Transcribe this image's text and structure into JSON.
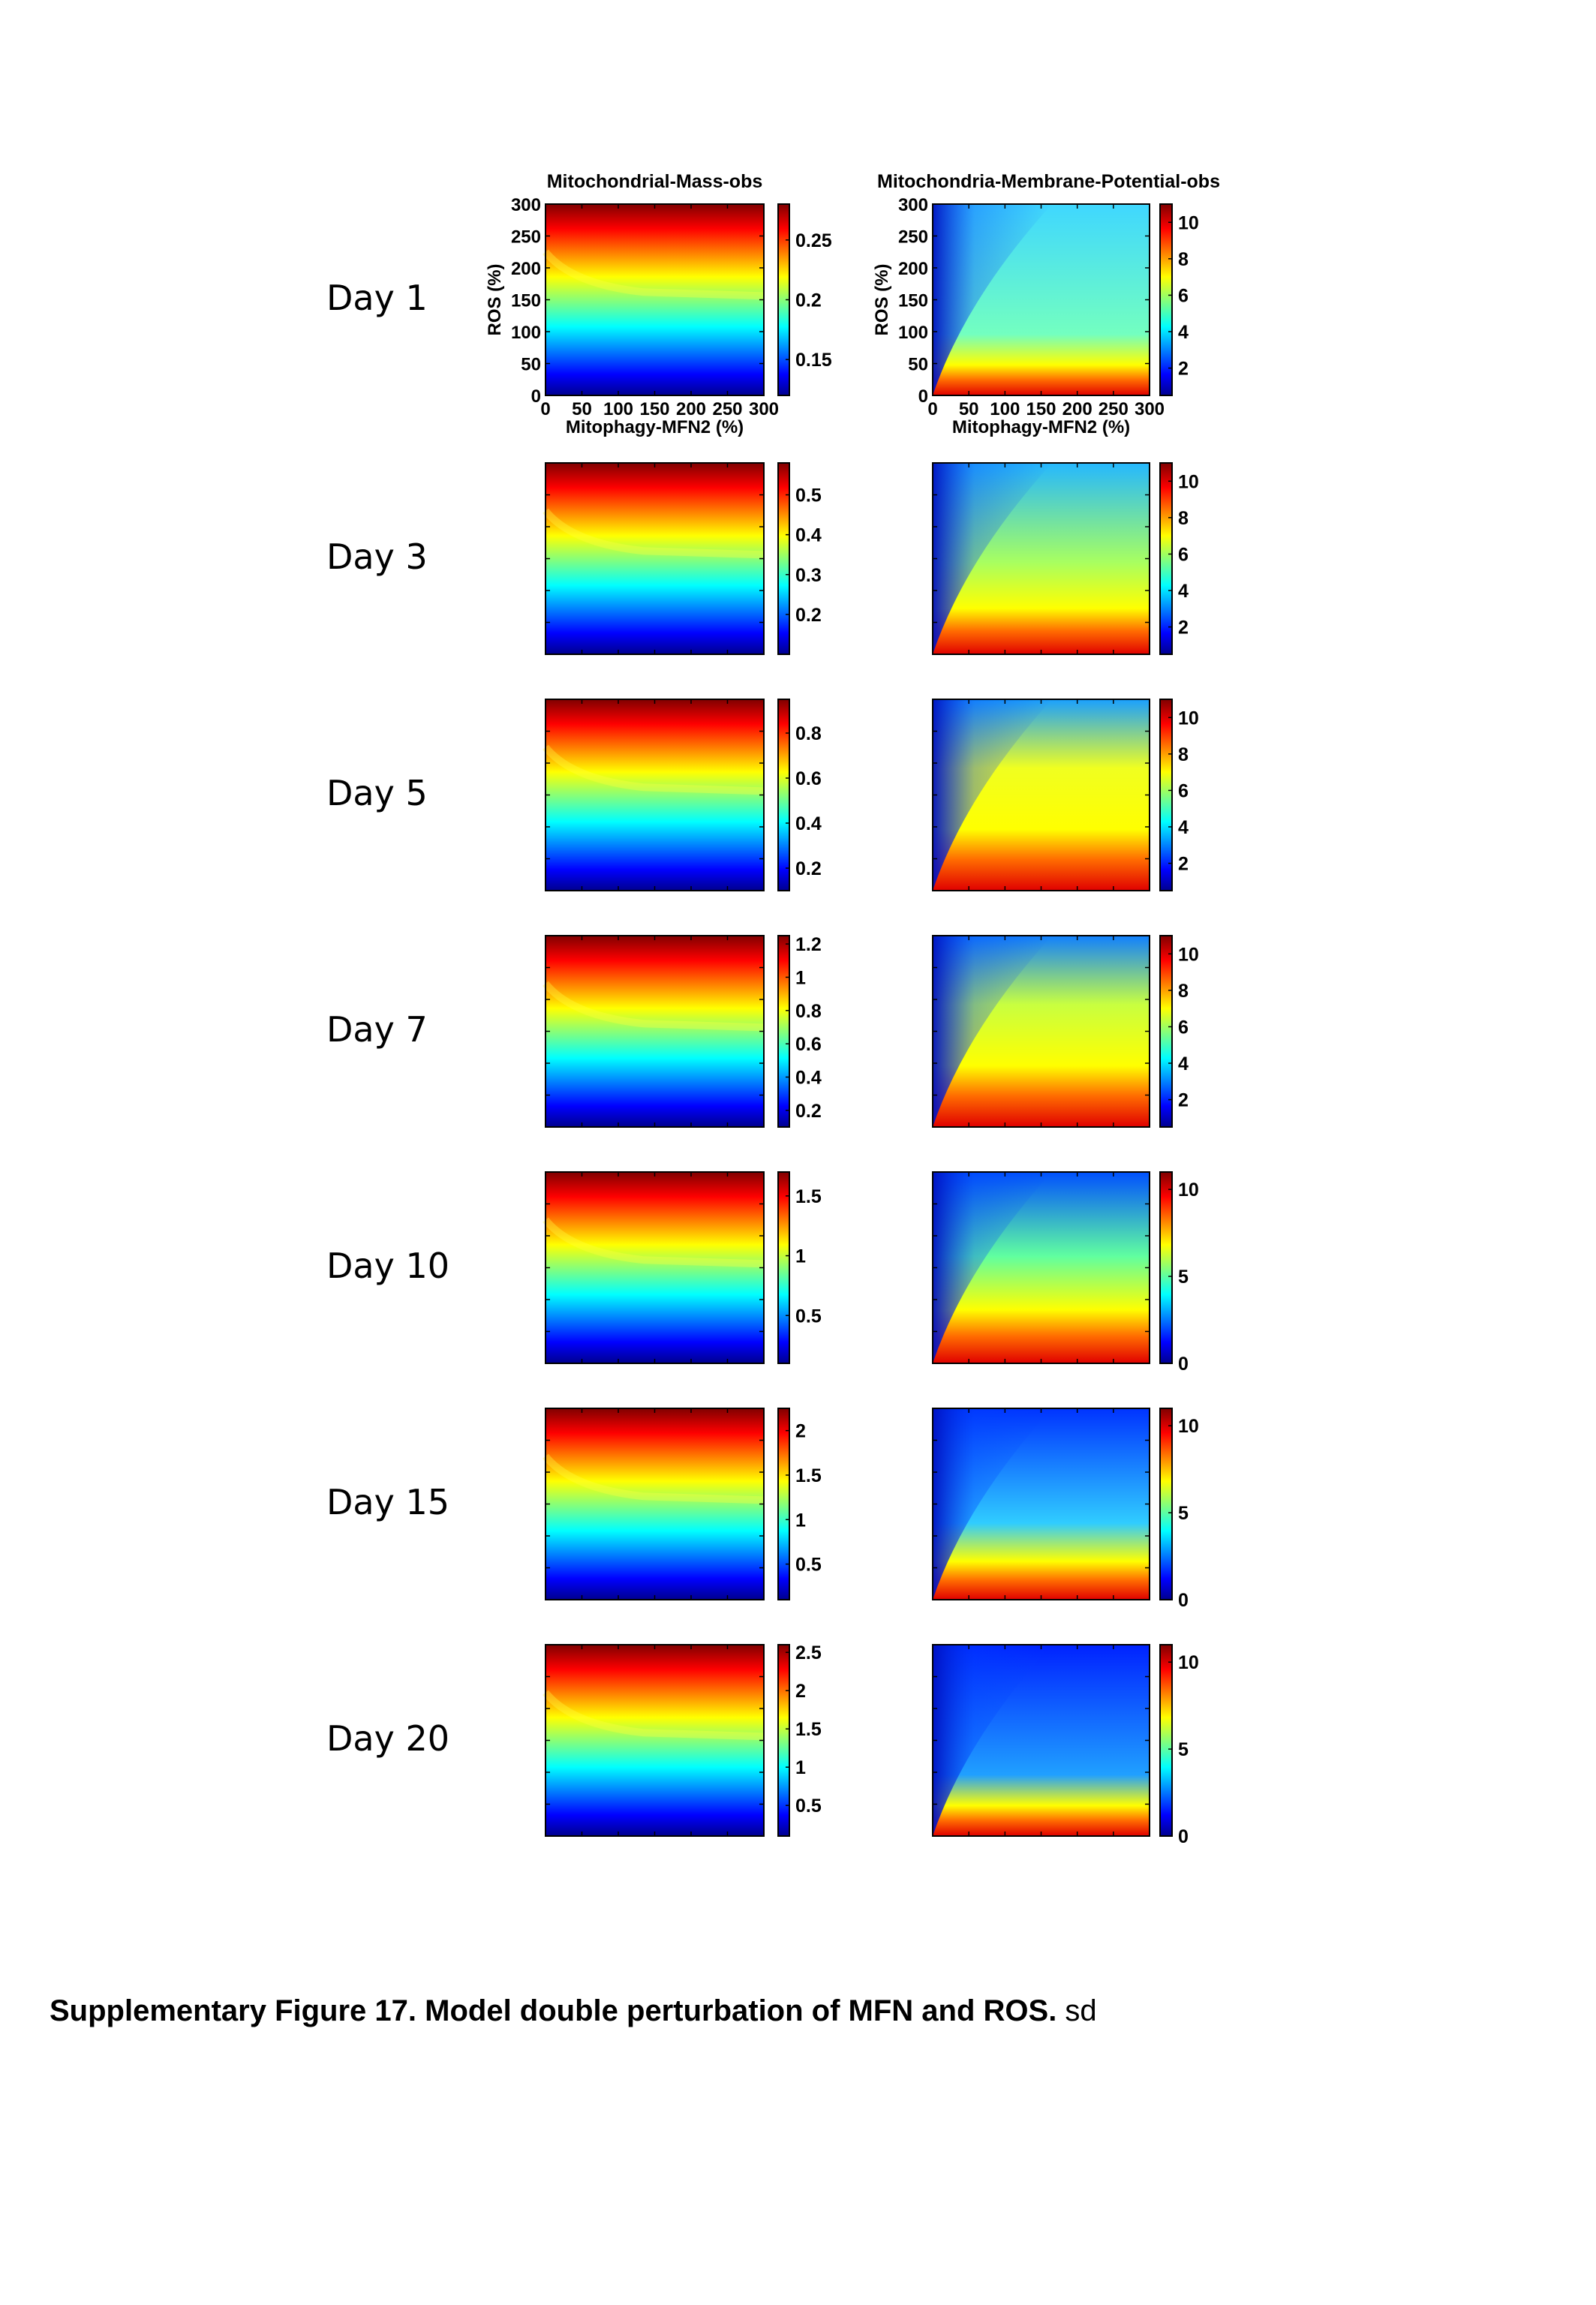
{
  "caption": {
    "bold": "Supplementary Figure 17. Model double perturbation of MFN and ROS.",
    "normal": " sd"
  },
  "rows": [
    {
      "day": "Day 1"
    },
    {
      "day": "Day 3"
    },
    {
      "day": "Day 5"
    },
    {
      "day": "Day 7"
    },
    {
      "day": "Day 10"
    },
    {
      "day": "Day 15"
    },
    {
      "day": "Day 20"
    }
  ],
  "chart_data": [
    {
      "type": "heatmap",
      "title": "Mitochondrial-Mass-obs",
      "panel": "Day 1",
      "xlabel": "Mitophagy-MFN2 (%)",
      "ylabel": "ROS (%)",
      "xlim": [
        0,
        300
      ],
      "ylim": [
        0,
        300
      ],
      "xticks": [
        "0",
        "50",
        "100",
        "150",
        "200",
        "250",
        "300"
      ],
      "yticks": [
        "0",
        "50",
        "100",
        "150",
        "200",
        "250",
        "300"
      ],
      "colormap": "jet",
      "clim": [
        0.12,
        0.28
      ],
      "colorbar_ticks": [
        "0.15",
        "0.2",
        "0.25"
      ]
    },
    {
      "type": "heatmap",
      "title": "Mitochondria-Membrane-Potential-obs",
      "panel": "Day 1",
      "xlabel": "Mitophagy-MFN2 (%)",
      "ylabel": "ROS (%)",
      "xlim": [
        0,
        300
      ],
      "ylim": [
        0,
        300
      ],
      "xticks": [
        "0",
        "50",
        "100",
        "150",
        "200",
        "250",
        "300"
      ],
      "yticks": [
        "0",
        "50",
        "100",
        "150",
        "200",
        "250",
        "300"
      ],
      "colormap": "jet",
      "clim": [
        0.5,
        11
      ],
      "colorbar_ticks": [
        "2",
        "4",
        "6",
        "8",
        "10"
      ]
    },
    {
      "type": "heatmap",
      "panel": "Day 3",
      "colormap": "jet",
      "clim": [
        0.1,
        0.58
      ],
      "colorbar_ticks": [
        "0.2",
        "0.3",
        "0.4",
        "0.5"
      ]
    },
    {
      "type": "heatmap",
      "panel": "Day 3",
      "colormap": "jet",
      "clim": [
        0.5,
        11
      ],
      "colorbar_ticks": [
        "2",
        "4",
        "6",
        "8",
        "10"
      ]
    },
    {
      "type": "heatmap",
      "panel": "Day 5",
      "colormap": "jet",
      "clim": [
        0.1,
        0.95
      ],
      "colorbar_ticks": [
        "0.2",
        "0.4",
        "0.6",
        "0.8"
      ]
    },
    {
      "type": "heatmap",
      "panel": "Day 5",
      "colormap": "jet",
      "clim": [
        0.5,
        11
      ],
      "colorbar_ticks": [
        "2",
        "4",
        "6",
        "8",
        "10"
      ]
    },
    {
      "type": "heatmap",
      "panel": "Day 7",
      "colormap": "jet",
      "clim": [
        0.1,
        1.25
      ],
      "colorbar_ticks": [
        "0.2",
        "0.4",
        "0.6",
        "0.8",
        "1",
        "1.2"
      ]
    },
    {
      "type": "heatmap",
      "panel": "Day 7",
      "colormap": "jet",
      "clim": [
        0.5,
        11
      ],
      "colorbar_ticks": [
        "2",
        "4",
        "6",
        "8",
        "10"
      ]
    },
    {
      "type": "heatmap",
      "panel": "Day 10",
      "colormap": "jet",
      "clim": [
        0.1,
        1.7
      ],
      "colorbar_ticks": [
        "0.5",
        "1",
        "1.5"
      ]
    },
    {
      "type": "heatmap",
      "panel": "Day 10",
      "colormap": "jet",
      "clim": [
        0,
        11
      ],
      "colorbar_ticks": [
        "0",
        "5",
        "10"
      ]
    },
    {
      "type": "heatmap",
      "panel": "Day 15",
      "colormap": "jet",
      "clim": [
        0.1,
        2.25
      ],
      "colorbar_ticks": [
        "0.5",
        "1",
        "1.5",
        "2"
      ]
    },
    {
      "type": "heatmap",
      "panel": "Day 15",
      "colormap": "jet",
      "clim": [
        0,
        11
      ],
      "colorbar_ticks": [
        "0",
        "5",
        "10"
      ]
    },
    {
      "type": "heatmap",
      "panel": "Day 20",
      "colormap": "jet",
      "clim": [
        0.1,
        2.6
      ],
      "colorbar_ticks": [
        "0.5",
        "1",
        "1.5",
        "2",
        "2.5"
      ]
    },
    {
      "type": "heatmap",
      "panel": "Day 20",
      "colormap": "jet",
      "clim": [
        0,
        11
      ],
      "colorbar_ticks": [
        "0",
        "5",
        "10"
      ]
    }
  ]
}
